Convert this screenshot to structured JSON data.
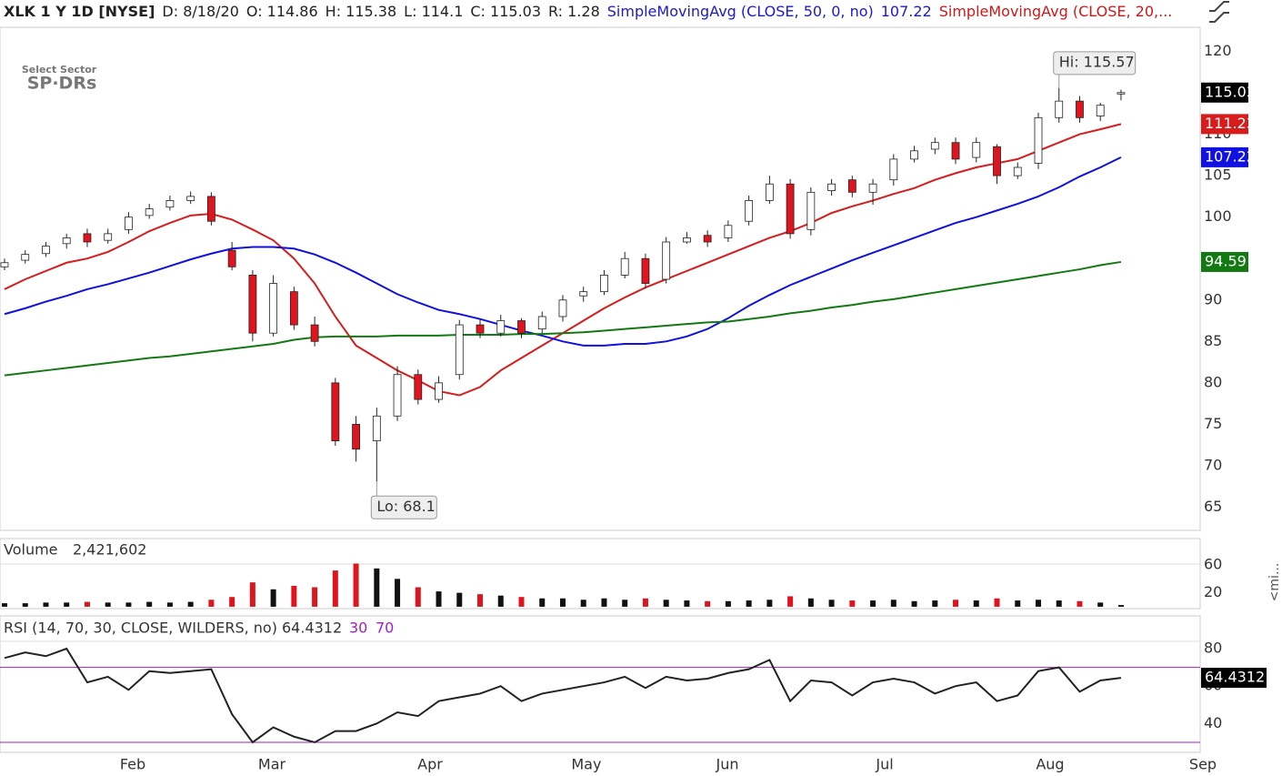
{
  "header": {
    "symbol": "XLK 1 Y 1D [NYSE]",
    "date": "D: 8/18/20",
    "open": "O: 114.86",
    "high": "H: 115.38",
    "low": "L: 114.1",
    "close": "C: 115.03",
    "range": "R: 1.28",
    "sma50_name": "SimpleMovingAvg (CLOSE, 50, 0, no)",
    "sma50_value": "107.22",
    "sma20_name": "SimpleMovingAvg (CLOSE, 20,..."
  },
  "logo": {
    "line1": "Select Sector",
    "line2": "SP·DRs"
  },
  "side_tab": "<mi...",
  "chart_data": [
    {
      "type": "candlestick",
      "up_color": "#ffffff",
      "down_color": "#e0141e",
      "open": [
        94,
        94.8,
        95.6,
        96.8,
        98,
        97.2,
        98.5,
        100.2,
        101.2,
        102,
        102.5,
        96,
        93,
        86,
        91,
        87,
        80,
        75,
        73,
        76,
        81,
        78,
        81,
        87,
        86,
        87.5,
        86.5,
        88,
        90.5,
        91,
        93,
        95,
        92.5,
        97,
        97.8,
        97.5,
        99.5,
        102,
        104,
        98.5,
        103.2,
        104.5,
        103,
        104.5,
        107,
        108.2,
        109,
        107.2,
        108.5,
        105,
        106.5,
        112,
        114,
        112.2,
        114.86
      ],
      "high": [
        95,
        96,
        97,
        98,
        98.6,
        98.6,
        100.6,
        101.6,
        102.6,
        103.1,
        103,
        97,
        93.6,
        93,
        91.6,
        88,
        80.6,
        76,
        77,
        82,
        81.6,
        80.8,
        87.6,
        87.6,
        88.2,
        87.8,
        88.6,
        90.6,
        91.6,
        93.6,
        95.8,
        95.6,
        97.6,
        98.2,
        98.4,
        99.6,
        102.6,
        105,
        104.6,
        103.6,
        104.6,
        105,
        104.6,
        107.6,
        108.6,
        109.6,
        109.6,
        109.6,
        108.8,
        106.6,
        112.6,
        115.57,
        114.6,
        113.8,
        115.38
      ],
      "low": [
        93.6,
        94.4,
        95.2,
        96.2,
        96.4,
        96.8,
        98,
        99.8,
        100.8,
        101.6,
        99,
        93.6,
        85,
        85.6,
        86.4,
        84.4,
        72.4,
        70.5,
        68.1,
        75.4,
        77.4,
        77.6,
        80.4,
        85.4,
        85.6,
        85.4,
        86,
        87.4,
        89.8,
        90.6,
        92.6,
        91.4,
        92,
        96.8,
        96.4,
        97,
        99,
        101.6,
        97.4,
        97.8,
        102.6,
        102.4,
        101.5,
        103.8,
        106.6,
        107.6,
        106.4,
        106.6,
        104,
        104.6,
        105.8,
        111.4,
        111.4,
        111.6,
        114.1
      ],
      "close": [
        94.5,
        95.5,
        96.5,
        97.5,
        97,
        98,
        100,
        101,
        102,
        102.5,
        99.5,
        94,
        86,
        92,
        87,
        85,
        73,
        72,
        76,
        81,
        78,
        80,
        87,
        86,
        87.5,
        86,
        88,
        90,
        91,
        93,
        95,
        92,
        97,
        97.5,
        97,
        99,
        102,
        104,
        98,
        103,
        104,
        103,
        104,
        107,
        108,
        109,
        107,
        109,
        105,
        106,
        112,
        114,
        112,
        113.5,
        115.03
      ],
      "series": [
        {
          "color": "#d81b1b",
          "values": [
            91.3,
            92.5,
            93.5,
            94.5,
            95,
            95.8,
            97,
            98.3,
            99.3,
            100.2,
            100.4,
            99.7,
            98.5,
            97.2,
            95,
            92,
            88,
            84.5,
            83,
            81.5,
            80.3,
            79,
            78.5,
            79.5,
            81.5,
            83,
            84.5,
            86,
            87.5,
            89,
            90.3,
            91.5,
            92.5,
            93.5,
            94.5,
            95.5,
            96.5,
            97.5,
            98.3,
            99.3,
            100.5,
            101.3,
            102,
            102.8,
            103.5,
            104.5,
            105.3,
            106,
            106.5,
            107,
            108,
            109,
            110,
            110.6,
            111.23
          ]
        },
        {
          "color": "#1010e0",
          "values": [
            88.3,
            89,
            89.8,
            90.5,
            91.3,
            91.9,
            92.6,
            93.3,
            94.1,
            94.9,
            95.6,
            96.2,
            96.4,
            96.4,
            96.2,
            95.5,
            94.5,
            93.3,
            92,
            90.7,
            89.7,
            88.8,
            88.3,
            87.7,
            87,
            86.3,
            85.7,
            85,
            84.5,
            84.5,
            84.7,
            84.7,
            85,
            85.6,
            86.5,
            87.8,
            89.3,
            90.6,
            91.8,
            92.8,
            93.8,
            94.8,
            95.7,
            96.6,
            97.5,
            98.4,
            99.3,
            100,
            100.8,
            101.6,
            102.5,
            103.6,
            104.9,
            106,
            107.22
          ]
        },
        {
          "color": "#137a13",
          "values": [
            80.9,
            81.2,
            81.5,
            81.8,
            82.1,
            82.4,
            82.7,
            83,
            83.2,
            83.5,
            83.8,
            84.1,
            84.4,
            84.7,
            85.2,
            85.5,
            85.6,
            85.6,
            85.6,
            85.7,
            85.7,
            85.7,
            85.8,
            85.8,
            85.8,
            85.9,
            85.9,
            86,
            86.1,
            86.3,
            86.5,
            86.7,
            86.9,
            87.1,
            87.3,
            87.4,
            87.7,
            88,
            88.4,
            88.7,
            89.1,
            89.4,
            89.8,
            90.1,
            90.5,
            90.9,
            91.3,
            91.7,
            92.1,
            92.5,
            92.9,
            93.3,
            93.7,
            94.2,
            94.59
          ]
        }
      ],
      "ylim": [
        62.2,
        126.2
      ],
      "yticks": [
        120,
        115,
        110,
        105,
        100,
        95,
        90,
        85,
        80,
        75,
        70,
        65
      ],
      "xlim": [
        -0.22,
        58.18
      ],
      "xticks": [
        {
          "value": 6.2,
          "label": "Feb"
        },
        {
          "value": 12.93,
          "label": "Mar"
        },
        {
          "value": 20.58,
          "label": "Apr"
        },
        {
          "value": 28.14,
          "label": "May"
        },
        {
          "value": 34.96,
          "label": "Jun"
        },
        {
          "value": 42.57,
          "label": "Jul"
        },
        {
          "value": 50.57,
          "label": "Aug"
        },
        {
          "value": 57.96,
          "label": "Sep"
        }
      ],
      "annotations": [
        {
          "text": "Hi: 115.57",
          "index": 51,
          "value": 115.57
        },
        {
          "text": "Lo: 68.1",
          "index": 18,
          "value": 68.1
        }
      ]
    },
    {
      "type": "bar",
      "title": "Volume",
      "readout": "2,421,602",
      "up_color": "#111111",
      "down_color": "#e0141e",
      "values": [
        5,
        5,
        6,
        6,
        7,
        6,
        6,
        7,
        6,
        7,
        10,
        14,
        35,
        25,
        30,
        28,
        52,
        62,
        55,
        40,
        28,
        22,
        20,
        18,
        16,
        14,
        12,
        12,
        10,
        12,
        10,
        12,
        10,
        9,
        8,
        8,
        9,
        10,
        15,
        12,
        10,
        9,
        9,
        10,
        8,
        9,
        10,
        9,
        12,
        9,
        10,
        9,
        8,
        6,
        2.421602
      ],
      "ylim": [
        -2.7,
        61.3
      ],
      "yticks": [
        20,
        60
      ]
    },
    {
      "type": "line",
      "title": "RSI (14, 70, 30, CLOSE, WILDERS, no)",
      "color": "#222222",
      "level_color": "#a020c0",
      "levels": [
        30,
        70
      ],
      "values": [
        75,
        78,
        76,
        80,
        62,
        65,
        58,
        68,
        67,
        68,
        69,
        45,
        30,
        38,
        33,
        30,
        36,
        36,
        40,
        46,
        44,
        52,
        54,
        56,
        60,
        52,
        56,
        58,
        60,
        62,
        65,
        59,
        65,
        63,
        64,
        67,
        69,
        74,
        52,
        63,
        62,
        55,
        62,
        64,
        62,
        56,
        60,
        62,
        52,
        55,
        68,
        70,
        57,
        63,
        64.4312
      ],
      "ylim": [
        25.6,
        83.9
      ],
      "yticks": [
        40,
        60,
        80
      ]
    }
  ]
}
